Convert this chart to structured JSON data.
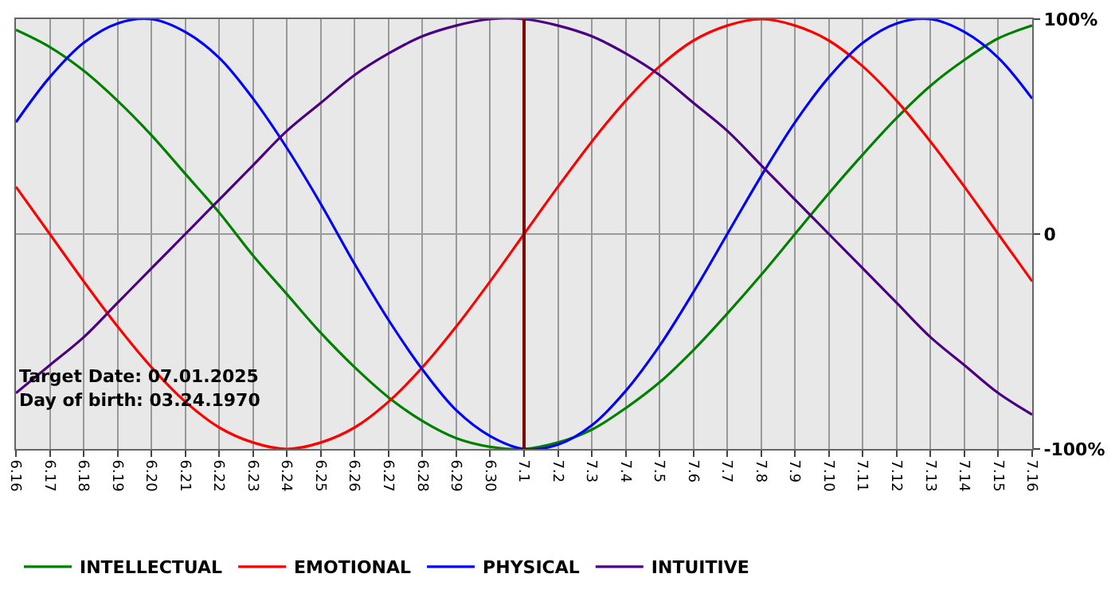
{
  "chart_data": {
    "type": "line",
    "categories": [
      "6.16",
      "6.17",
      "6.18",
      "6.19",
      "6.20",
      "6.21",
      "6.22",
      "6.23",
      "6.24",
      "6.25",
      "6.26",
      "6.27",
      "6.28",
      "6.29",
      "6.30",
      "7.1",
      "7.2",
      "7.3",
      "7.4",
      "7.5",
      "7.6",
      "7.7",
      "7.8",
      "7.9",
      "7.10",
      "7.11",
      "7.12",
      "7.13",
      "7.14",
      "7.15",
      "7.16"
    ],
    "series": [
      {
        "name": "INTELLECTUAL",
        "color": "#008000",
        "values": [
          95,
          87,
          76,
          62,
          46,
          28,
          10,
          -10,
          -28,
          -46,
          -62,
          -76,
          -87,
          -95,
          -99,
          -100,
          -97,
          -91,
          -81,
          -69,
          -54,
          -37,
          -19,
          0,
          19,
          37,
          54,
          69,
          81,
          91,
          97
        ]
      },
      {
        "name": "EMOTIONAL",
        "color": "#ff0000",
        "values": [
          22,
          0,
          -22,
          -43,
          -62,
          -78,
          -90,
          -97,
          -100,
          -97,
          -90,
          -78,
          -62,
          -43,
          -22,
          0,
          22,
          43,
          62,
          78,
          90,
          97,
          100,
          97,
          90,
          78,
          62,
          43,
          22,
          0,
          -22
        ]
      },
      {
        "name": "PHYSICAL",
        "color": "#0000ff",
        "values": [
          52,
          73,
          89,
          98,
          100,
          94,
          82,
          63,
          40,
          14,
          -14,
          -40,
          -63,
          -82,
          -94,
          -100,
          -98,
          -89,
          -73,
          -52,
          -27,
          0,
          27,
          52,
          73,
          89,
          98,
          100,
          94,
          82,
          63
        ]
      },
      {
        "name": "INTUITIVE",
        "color": "#4b0082",
        "values": [
          -74,
          -61,
          -48,
          -32,
          -16,
          0,
          16,
          32,
          48,
          61,
          74,
          84,
          92,
          97,
          100,
          100,
          97,
          92,
          84,
          74,
          61,
          48,
          32,
          16,
          0,
          -16,
          -32,
          -48,
          -61,
          -74,
          -84
        ]
      }
    ],
    "ylim": [
      -100,
      100
    ],
    "yticks": [
      {
        "value": 100,
        "label": "100%"
      },
      0,
      {
        "value": -100,
        "label": "-100%"
      }
    ],
    "grid": true,
    "marker": "none",
    "line_style": "solid",
    "legend": "bottom left",
    "ref_lines": [
      {
        "axis": "x",
        "value": "7.1",
        "color": "#800000"
      }
    ],
    "annotations": [
      "Target Date: 07.01.2025",
      "Day of birth: 03.24.1970"
    ]
  }
}
